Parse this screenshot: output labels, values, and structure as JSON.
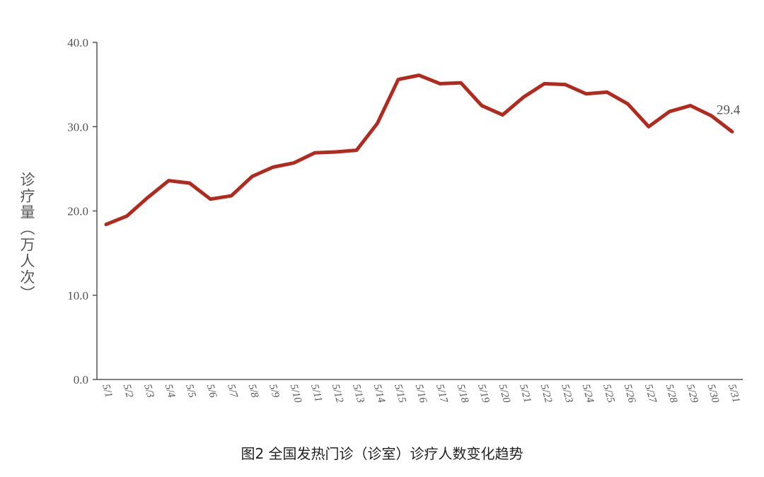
{
  "chart_data": {
    "type": "line",
    "title": "图2 全国发热门诊（诊室）诊疗人数变化趋势",
    "xlabel": "",
    "ylabel": "诊疗量（万人次）",
    "ylim": [
      0,
      40
    ],
    "yticks": [
      "0.0",
      "10.0",
      "20.0",
      "30.0",
      "40.0"
    ],
    "grid": false,
    "categories": [
      "5/1",
      "5/2",
      "5/3",
      "5/4",
      "5/5",
      "5/6",
      "5/7",
      "5/8",
      "5/9",
      "5/10",
      "5/11",
      "5/12",
      "5/13",
      "5/14",
      "5/15",
      "5/16",
      "5/17",
      "5/18",
      "5/19",
      "5/20",
      "5/21",
      "5/22",
      "5/23",
      "5/24",
      "5/25",
      "5/26",
      "5/27",
      "5/28",
      "5/29",
      "5/30",
      "5/31"
    ],
    "series": [
      {
        "values": [
          18.4,
          19.4,
          21.6,
          23.6,
          23.3,
          21.4,
          21.8,
          24.1,
          25.2,
          25.7,
          26.9,
          27.0,
          27.2,
          30.4,
          35.6,
          36.1,
          35.1,
          35.2,
          32.5,
          31.4,
          33.5,
          35.1,
          35.0,
          33.9,
          34.1,
          32.7,
          30.0,
          31.8,
          32.5,
          31.3,
          29.4
        ],
        "color": "#b22a1e"
      }
    ],
    "data_label": {
      "category": "5/31",
      "text": "29.4"
    }
  }
}
